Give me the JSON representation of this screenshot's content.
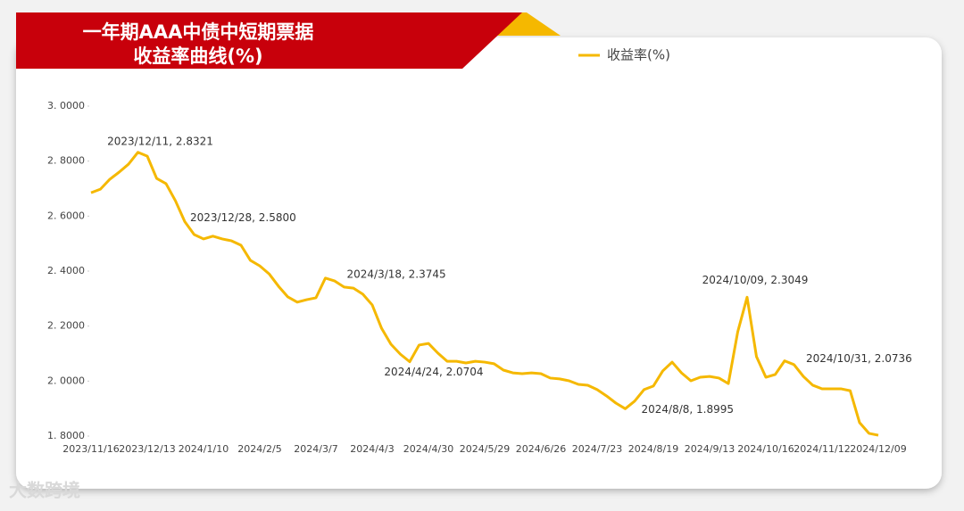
{
  "chart_data": {
    "type": "line",
    "title": "一年期AAA中债中短期票据",
    "subtitle": "收益率曲线(%)",
    "categories": [
      "2023/11/16",
      null,
      null,
      null,
      null,
      null,
      "2023/12/13",
      null,
      null,
      null,
      null,
      null,
      "2024/1/10",
      null,
      null,
      null,
      null,
      null,
      "2024/2/5",
      null,
      null,
      null,
      null,
      null,
      "2024/3/7",
      null,
      null,
      null,
      null,
      null,
      "2024/4/3",
      null,
      null,
      null,
      null,
      null,
      "2024/4/30",
      null,
      null,
      null,
      null,
      null,
      "2024/5/29",
      null,
      null,
      null,
      null,
      null,
      "2024/6/26",
      null,
      null,
      null,
      null,
      null,
      "2024/7/23",
      null,
      null,
      null,
      null,
      null,
      "2024/8/19",
      null,
      null,
      null,
      null,
      null,
      "2024/9/13",
      null,
      null,
      null,
      null,
      null,
      "2024/10/16",
      null,
      null,
      null,
      null,
      null,
      "2024/11/12",
      null,
      null,
      null,
      null,
      null,
      "2024/12/09"
    ],
    "series": [
      {
        "name": "收益率(%)",
        "color": "#f5b800",
        "values": [
          2.685,
          2.698,
          2.734,
          2.76,
          2.789,
          2.8321,
          2.818,
          2.737,
          2.718,
          2.656,
          2.58,
          2.533,
          2.517,
          2.527,
          2.517,
          2.51,
          2.494,
          2.439,
          2.419,
          2.39,
          2.345,
          2.306,
          2.287,
          2.296,
          2.303,
          2.3745,
          2.364,
          2.342,
          2.338,
          2.316,
          2.277,
          2.192,
          2.134,
          2.098,
          2.0704,
          2.131,
          2.137,
          2.102,
          2.072,
          2.072,
          2.066,
          2.072,
          2.069,
          2.063,
          2.04,
          2.03,
          2.027,
          2.03,
          2.027,
          2.011,
          2.008,
          2.001,
          1.988,
          1.985,
          1.969,
          1.946,
          1.92,
          1.8995,
          1.927,
          1.969,
          1.982,
          2.037,
          2.069,
          2.03,
          2.001,
          2.014,
          2.017,
          2.011,
          1.991,
          2.179,
          2.3049,
          2.089,
          2.014,
          2.024,
          2.0736,
          2.06,
          2.017,
          1.985,
          1.972,
          1.972,
          1.972,
          1.965,
          1.849,
          1.81,
          1.803
        ],
        "value_labels": [
          null,
          null,
          null,
          null,
          null,
          "2023/12/11, 2.8321",
          null,
          null,
          null,
          null,
          "2023/12/28, 2.5800",
          null,
          null,
          null,
          null,
          null,
          null,
          null,
          null,
          null,
          null,
          null,
          null,
          null,
          null,
          "2024/3/18, 2.3745",
          null,
          null,
          null,
          null,
          null,
          null,
          null,
          null,
          "2024/4/24, 2.0704",
          null,
          null,
          null,
          null,
          null,
          null,
          null,
          null,
          null,
          null,
          null,
          null,
          null,
          null,
          null,
          null,
          null,
          null,
          null,
          null,
          null,
          null,
          "2024/8/8, 1.8995",
          null,
          null,
          null,
          null,
          null,
          null,
          null,
          null,
          null,
          null,
          null,
          null,
          "2024/10/09, 2.3049",
          null,
          null,
          null,
          "2024/10/31, 2.0736",
          null,
          null,
          null,
          null,
          null,
          null,
          null,
          null,
          null,
          null
        ]
      }
    ],
    "ylim": [
      1.8,
      3.0
    ],
    "yticks": [
      {
        "value": 1.8,
        "label": "1. 8000"
      },
      {
        "value": 2.0,
        "label": "2. 0000"
      },
      {
        "value": 2.2,
        "label": "2. 2000"
      },
      {
        "value": 2.4,
        "label": "2. 4000"
      },
      {
        "value": 2.6,
        "label": "2. 6000"
      },
      {
        "value": 2.8,
        "label": "2. 8000"
      },
      {
        "value": 3.0,
        "label": "3. 0000"
      }
    ],
    "grid": false,
    "legend": "top"
  },
  "watermark": "大数跨境"
}
